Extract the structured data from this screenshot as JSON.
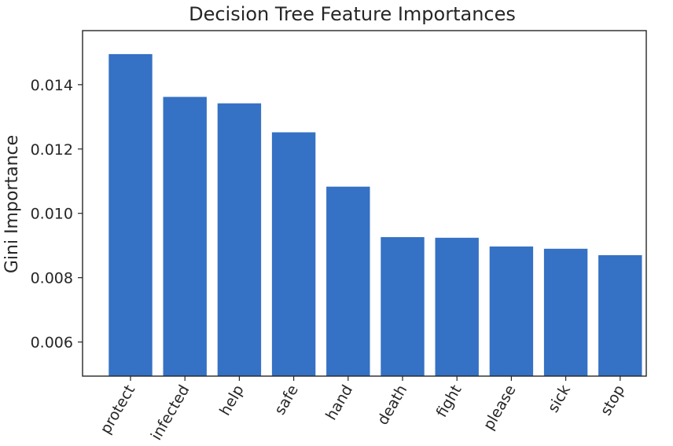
{
  "chart_data": {
    "type": "bar",
    "title": "Decision Tree Feature Importances",
    "xlabel": "",
    "ylabel": "Gini Importance",
    "categories": [
      "protect",
      "infected",
      "help",
      "safe",
      "hand",
      "death",
      "fight",
      "please",
      "sick",
      "stop"
    ],
    "values": [
      0.01495,
      0.01362,
      0.01342,
      0.01252,
      0.01083,
      0.00926,
      0.00924,
      0.00897,
      0.0089,
      0.0087
    ],
    "ylim": [
      0.00494,
      0.01568
    ],
    "yticks": [
      0.006,
      0.008,
      0.01,
      0.012,
      0.014
    ],
    "ytick_labels": [
      "0.006",
      "0.008",
      "0.010",
      "0.012",
      "0.014"
    ],
    "bar_color": "#3571c4",
    "grid": false,
    "legend": "none"
  }
}
